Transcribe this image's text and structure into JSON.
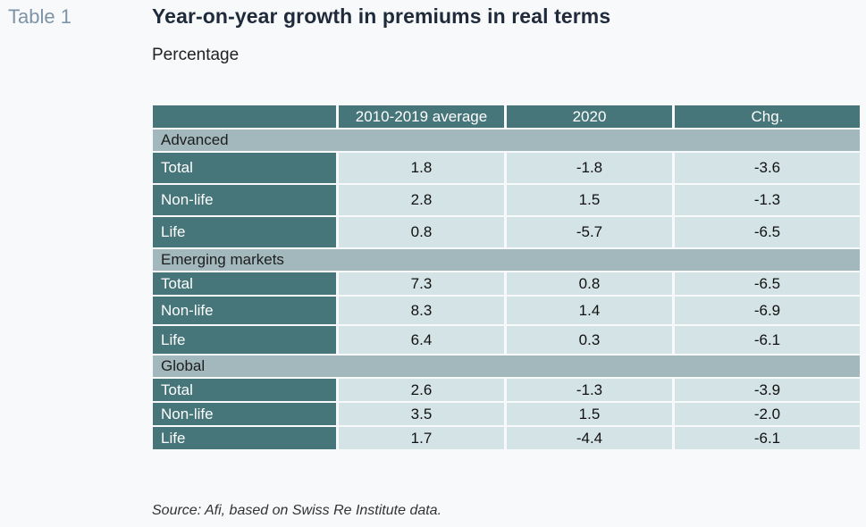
{
  "table_label": "Table 1",
  "title": "Year-on-year growth in premiums in real terms",
  "subtitle": "Percentage",
  "columns": [
    "",
    "2010-2019 average",
    "2020",
    "Chg."
  ],
  "groups": [
    {
      "name": "Advanced",
      "rows": [
        {
          "label": "Total",
          "values": [
            "1.8",
            "-1.8",
            "-3.6"
          ]
        },
        {
          "label": "Non-life",
          "values": [
            "2.8",
            "1.5",
            "-1.3"
          ]
        },
        {
          "label": "Life",
          "values": [
            "0.8",
            "-5.7",
            "-6.5"
          ]
        }
      ]
    },
    {
      "name": "Emerging markets",
      "rows": [
        {
          "label": "Total",
          "values": [
            "7.3",
            "0.8",
            "-6.5"
          ]
        },
        {
          "label": "Non-life",
          "values": [
            "8.3",
            "1.4",
            "-6.9"
          ]
        },
        {
          "label": "Life",
          "values": [
            "6.4",
            "0.3",
            "-6.1"
          ]
        }
      ]
    },
    {
      "name": "Global",
      "rows": [
        {
          "label": "Total",
          "values": [
            "2.6",
            "-1.3",
            "-3.9"
          ]
        },
        {
          "label": "Non-life",
          "values": [
            "3.5",
            "1.5",
            "-2.0"
          ]
        },
        {
          "label": "Life",
          "values": [
            "1.7",
            "-4.4",
            "-6.1"
          ]
        }
      ]
    }
  ],
  "source": "Source: Afi, based on Swiss Re Institute data.",
  "colors": {
    "header_bg": "#46757a",
    "group_bg": "#a2b8bd",
    "cell_bg": "#d4e3e5"
  }
}
